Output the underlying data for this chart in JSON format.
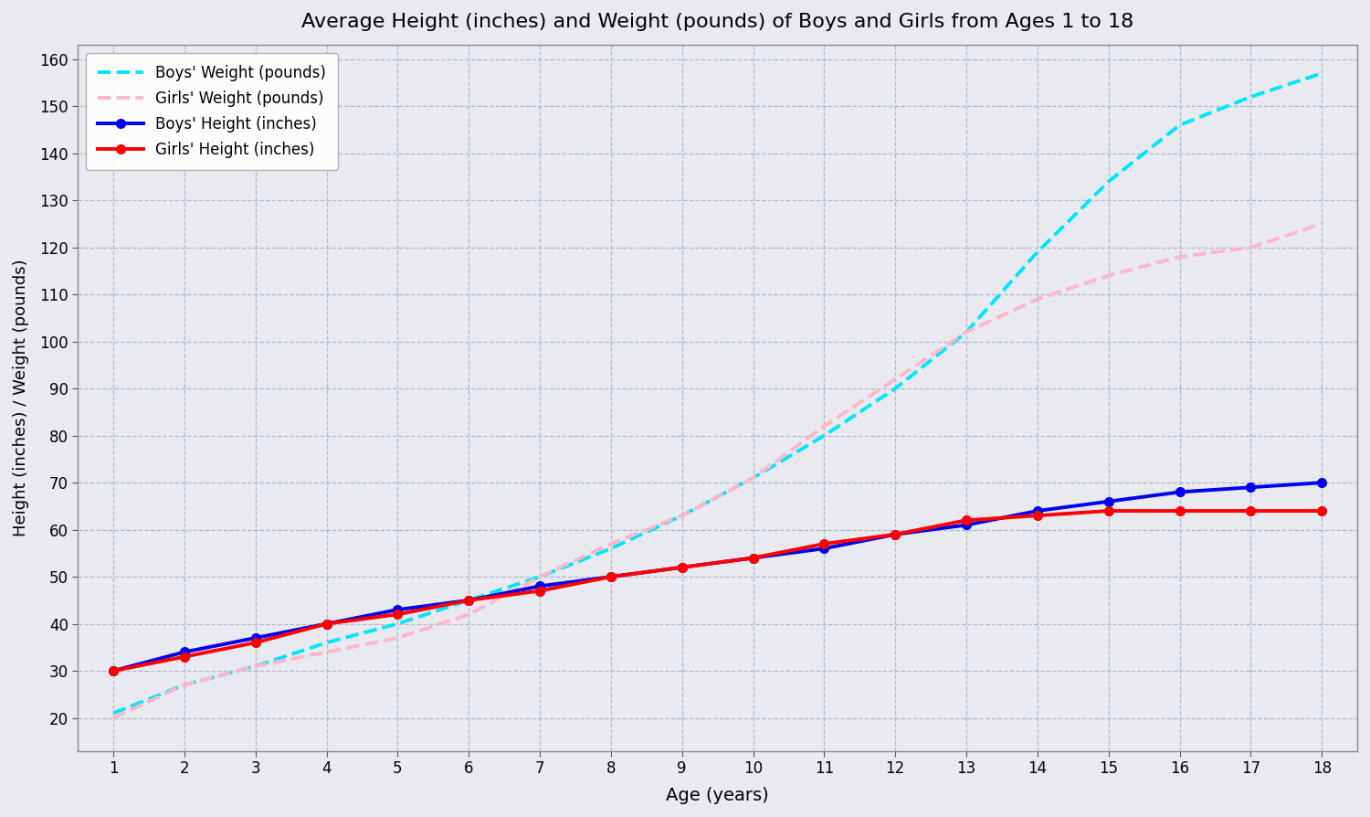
{
  "ages": [
    1,
    2,
    3,
    4,
    5,
    6,
    7,
    8,
    9,
    10,
    11,
    12,
    13,
    14,
    15,
    16,
    17,
    18
  ],
  "boys_height": [
    30,
    34,
    37,
    40,
    43,
    45,
    48,
    50,
    52,
    54,
    56,
    59,
    61,
    64,
    66,
    68,
    69,
    70
  ],
  "boys_weight": [
    21,
    27,
    31,
    36,
    40,
    45,
    50,
    56,
    63,
    71,
    80,
    90,
    102,
    119,
    134,
    146,
    152,
    157
  ],
  "girls_height": [
    30,
    33,
    36,
    40,
    42,
    45,
    47,
    50,
    52,
    54,
    57,
    59,
    62,
    63,
    64,
    64,
    64,
    64
  ],
  "girls_weight": [
    20,
    27,
    31,
    34,
    37,
    42,
    50,
    57,
    63,
    71,
    82,
    92,
    102,
    109,
    114,
    118,
    120,
    125
  ],
  "title": "Average Height (inches) and Weight (pounds) of Boys and Girls from Ages 1 to 18",
  "xlabel": "Age (years)",
  "ylabel": "Height (inches) / Weight (pounds)",
  "ylim_min": 13,
  "ylim_max": 163,
  "boys_height_color": "#0000ee",
  "boys_weight_color": "#00e5ff",
  "girls_height_color": "#ff0000",
  "girls_weight_color": "#ffb6c8",
  "legend_boys_height": "Boys' Height (inches)",
  "legend_boys_weight": "Boys' Weight (pounds)",
  "legend_girls_height": "Girls' Height (inches)",
  "legend_girls_weight": "Girls' Weight (pounds)",
  "background_color": "#e8eaf0",
  "plot_bg_color": "#e8eaf0",
  "grid_color": "#b0b8c8",
  "yticks": [
    20,
    30,
    40,
    50,
    60,
    70,
    80,
    90,
    100,
    110,
    120,
    130,
    140,
    150,
    160
  ]
}
